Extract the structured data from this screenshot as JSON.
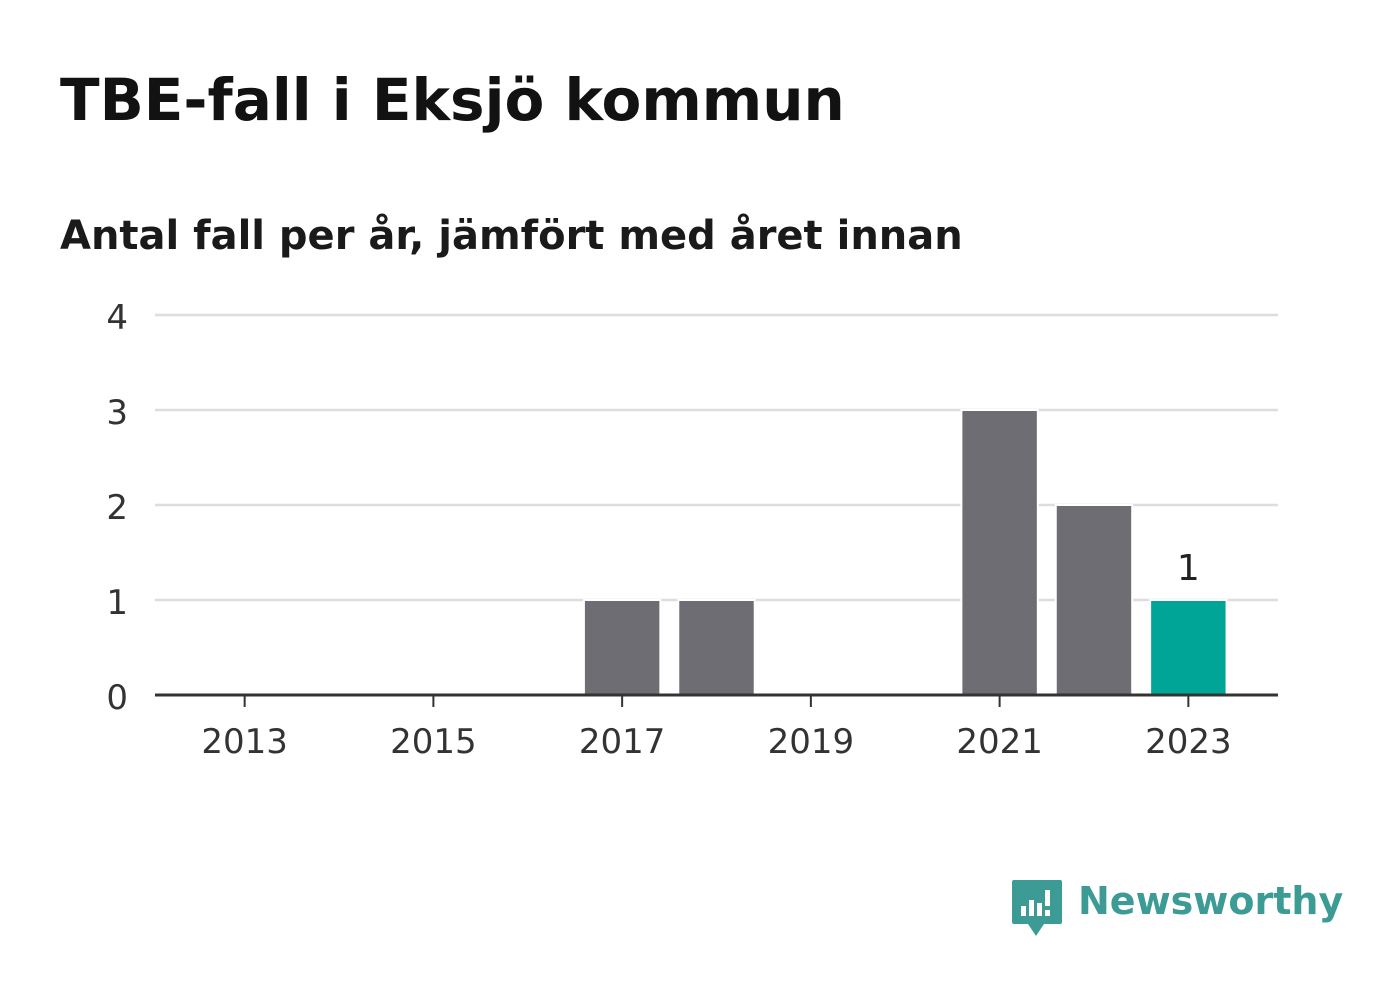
{
  "title": "TBE-fall i Eksjö kommun",
  "subtitle": "Antal fall per år, jämfört med året innan",
  "brand": {
    "name": "Newsworthy",
    "icon": "newsworthy-logo-icon",
    "color": "#3d9b95"
  },
  "colors": {
    "bar": "#6e6d73",
    "highlight": "#00a597",
    "grid": "#dddddd",
    "axis": "#333333",
    "text": "#333333"
  },
  "chart_data": {
    "type": "bar",
    "categories": [
      "2013",
      "2014",
      "2015",
      "2016",
      "2017",
      "2018",
      "2019",
      "2020",
      "2021",
      "2022",
      "2023"
    ],
    "values": [
      0,
      0,
      0,
      0,
      1,
      1,
      0,
      0,
      3,
      2,
      1
    ],
    "highlight_category": "2023",
    "x_tick_labels": [
      "2013",
      "2015",
      "2017",
      "2019",
      "2021",
      "2023"
    ],
    "y_ticks": [
      0,
      1,
      2,
      3,
      4
    ],
    "ylim": [
      0,
      4
    ],
    "data_labels": [
      {
        "category": "2023",
        "text": "1"
      }
    ],
    "xlabel": "",
    "ylabel": "",
    "grid": true
  }
}
